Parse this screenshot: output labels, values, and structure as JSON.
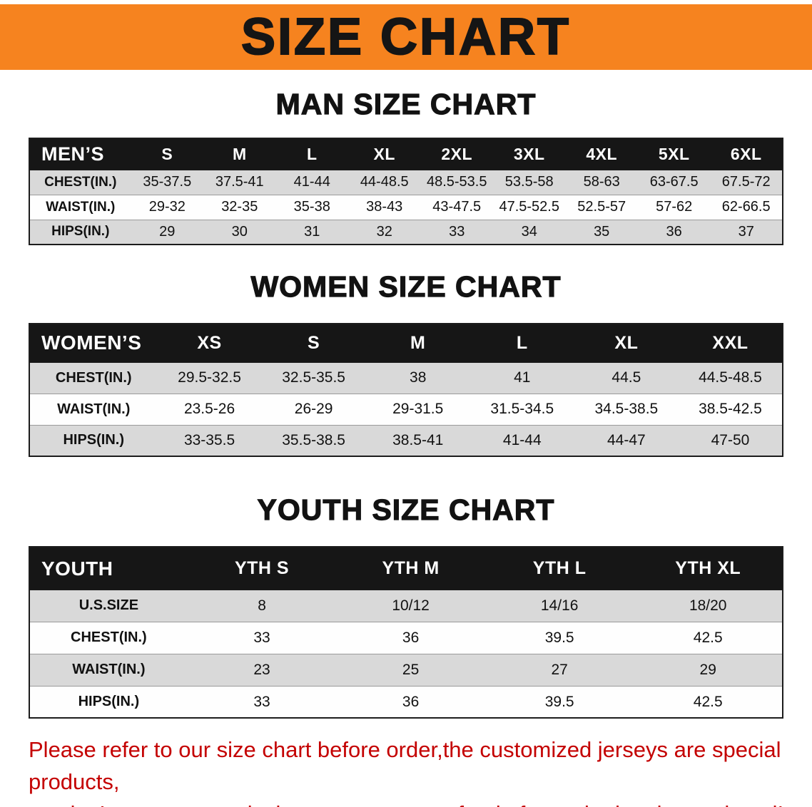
{
  "banner": {
    "title": "SIZE CHART"
  },
  "theme": {
    "banner_bg": "#F6831F",
    "banner_text": "#151515",
    "header_bg": "#161616",
    "header_text": "#FFFFFF",
    "stripe": "#D9D9D9",
    "note_red": "#C40000"
  },
  "chart_data": [
    {
      "type": "table",
      "title": "MAN SIZE CHART",
      "header": [
        "MEN’S",
        "S",
        "M",
        "L",
        "XL",
        "2XL",
        "3XL",
        "4XL",
        "5XL",
        "6XL"
      ],
      "rows": [
        [
          "CHEST(IN.)",
          "35-37.5",
          "37.5-41",
          "41-44",
          "44-48.5",
          "48.5-53.5",
          "53.5-58",
          "58-63",
          "63-67.5",
          "67.5-72"
        ],
        [
          "WAIST(IN.)",
          "29-32",
          "32-35",
          "35-38",
          "38-43",
          "43-47.5",
          "47.5-52.5",
          "52.5-57",
          "57-62",
          "62-66.5"
        ],
        [
          "HIPS(IN.)",
          "29",
          "30",
          "31",
          "32",
          "33",
          "34",
          "35",
          "36",
          "37"
        ]
      ]
    },
    {
      "type": "table",
      "title": "WOMEN SIZE CHART",
      "header": [
        "WOMEN’S",
        "XS",
        "S",
        "M",
        "L",
        "XL",
        "XXL"
      ],
      "rows": [
        [
          "CHEST(IN.)",
          "29.5-32.5",
          "32.5-35.5",
          "38",
          "41",
          "44.5",
          "44.5-48.5"
        ],
        [
          "WAIST(IN.)",
          "23.5-26",
          "26-29",
          "29-31.5",
          "31.5-34.5",
          "34.5-38.5",
          "38.5-42.5"
        ],
        [
          "HIPS(IN.)",
          "33-35.5",
          "35.5-38.5",
          "38.5-41",
          "41-44",
          "44-47",
          "47-50"
        ]
      ]
    },
    {
      "type": "table",
      "title": "YOUTH SIZE CHART",
      "header": [
        "YOUTH",
        "YTH S",
        "YTH M",
        "YTH L",
        "YTH XL"
      ],
      "rows": [
        [
          "U.S.SIZE",
          "8",
          "10/12",
          "14/16",
          "18/20"
        ],
        [
          "CHEST(IN.)",
          "33",
          "36",
          "39.5",
          "42.5"
        ],
        [
          "WAIST(IN.)",
          "23",
          "25",
          "27",
          "29"
        ],
        [
          "HIPS(IN.)",
          "33",
          "36",
          "39.5",
          "42.5"
        ]
      ]
    }
  ],
  "note": {
    "lines": [
      "Please refer to our size chart before order,the customized jerseys are special products,",
      "we don’t accept cancel, change, teturn or refund after order has been placed!"
    ]
  }
}
